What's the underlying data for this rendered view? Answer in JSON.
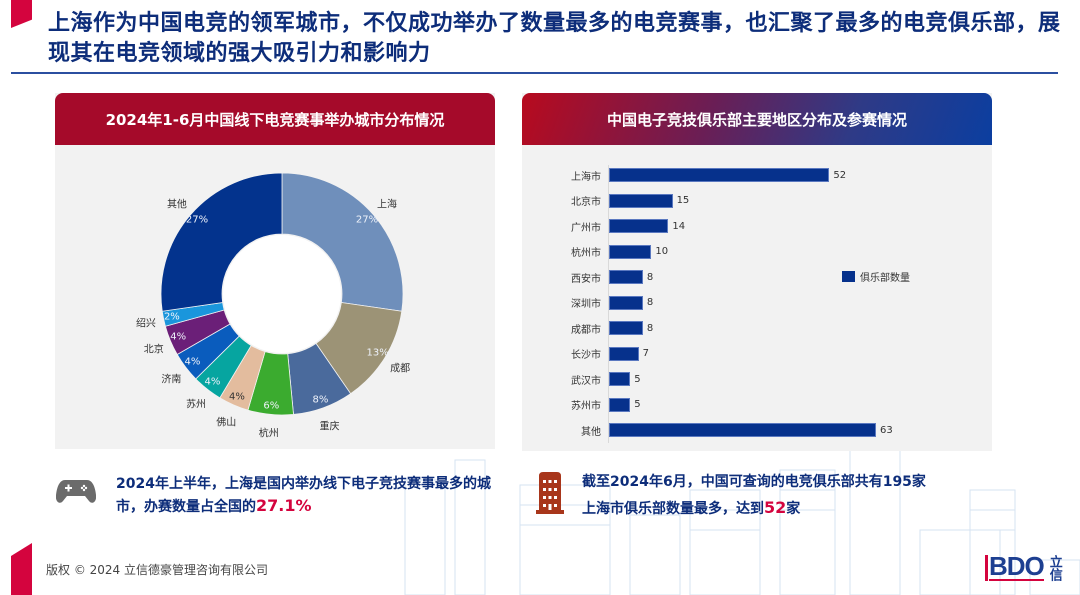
{
  "slide": {
    "title": "上海作为中国电竞的领军城市，不仅成功举办了数量最多的电竞赛事，也汇聚了最多的电竞俱乐部，展现其在电竞领域的强大吸引力和影响力",
    "copyright": "版权 © 2024 立信德豪管理咨询有限公司",
    "logo_text": "BDO",
    "logo_cn": "立信"
  },
  "left_panel": {
    "header": "2024年1-6月中国线下电竞赛事举办城市分布情况"
  },
  "right_panel": {
    "header": "中国电子竞技俱乐部主要地区分布及参赛情况",
    "legend": "俱乐部数量"
  },
  "callouts": {
    "left": {
      "icon": "gamepad-icon",
      "text": "2024年上半年，上海是国内举办线下电子竞技赛事最多的城市，办赛数量占全国的",
      "highlight": "27.1%"
    },
    "right": {
      "icon": "building-icon",
      "line1": "截至2024年6月，中国可查询的电竞俱乐部共有195家",
      "line2_pre": "上海市俱乐部数量最多，达到",
      "highlight": "52",
      "line2_post": "家"
    }
  },
  "colors": {
    "brand_red": "#d4043e",
    "title_blue": "#0d2d7a",
    "bar_blue": "#06318c"
  },
  "chart_data": [
    {
      "type": "pie",
      "donut": true,
      "title": "2024年1-6月中国线下电竞赛事举办城市分布情况",
      "categories": [
        "上海",
        "成都",
        "重庆",
        "杭州",
        "佛山",
        "苏州",
        "济南",
        "北京",
        "绍兴",
        "其他"
      ],
      "values": [
        27,
        13,
        8,
        6,
        4,
        4,
        4,
        4,
        2,
        27
      ],
      "labels": [
        "27%",
        "13%",
        "8%",
        "6%",
        "4%",
        "4%",
        "4%",
        "4%",
        "2%",
        "27%"
      ],
      "colors": [
        "#6f8fbb",
        "#9c9376",
        "#4a6a9c",
        "#3bab2f",
        "#e3bc9e",
        "#06a5a0",
        "#0a5cbd",
        "#6b1f78",
        "#1a96dc",
        "#03338d"
      ]
    },
    {
      "type": "bar",
      "orientation": "horizontal",
      "title": "中国电子竞技俱乐部主要地区分布及参赛情况",
      "categories": [
        "上海市",
        "北京市",
        "广州市",
        "杭州市",
        "西安市",
        "深圳市",
        "成都市",
        "长沙市",
        "武汉市",
        "苏州市",
        "其他"
      ],
      "series": [
        {
          "name": "俱乐部数量",
          "values": [
            52,
            15,
            14,
            10,
            8,
            8,
            8,
            7,
            5,
            5,
            63
          ]
        }
      ],
      "xlim": [
        0,
        63
      ],
      "legend_position": "right"
    }
  ]
}
